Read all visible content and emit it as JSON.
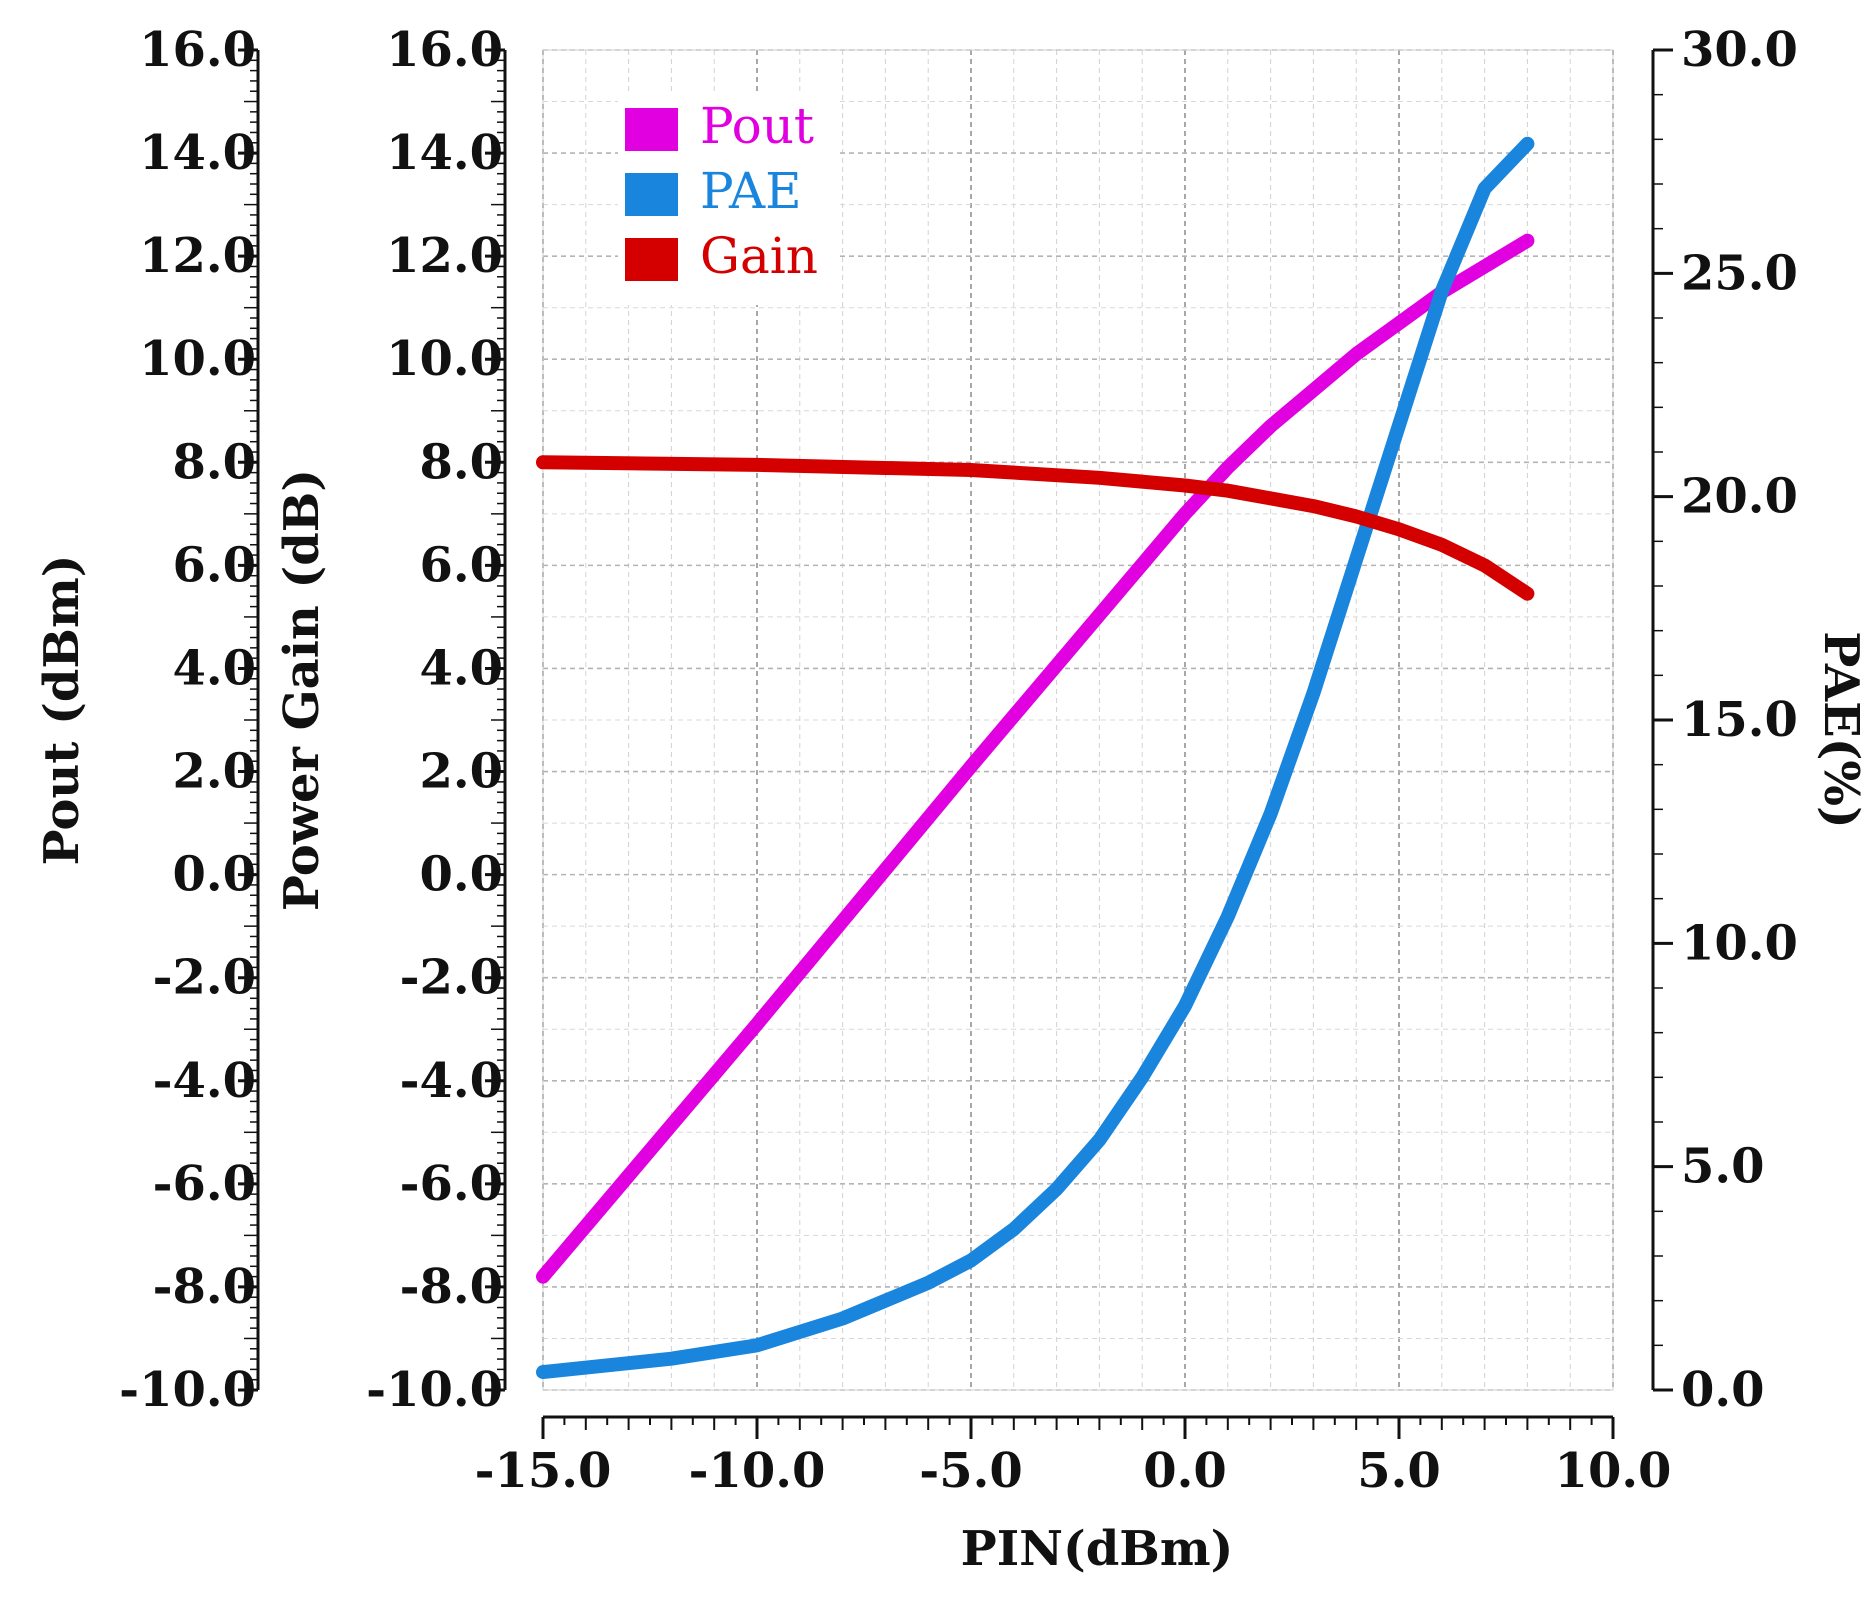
{
  "chart_data": {
    "type": "line",
    "title": "",
    "xlabel": "PIN(dBm)",
    "ylabel_left_outer": "Pout (dBm)",
    "ylabel_left_inner": "Power Gain (dB)",
    "ylabel_right": "PAE(%)",
    "xlim": [
      -15,
      10
    ],
    "ylim_left": [
      -10,
      16
    ],
    "ylim_right": [
      0,
      30
    ],
    "x_ticks": [
      "-15.0",
      "-10.0",
      "-5.0",
      "0.0",
      "5.0",
      "10.0"
    ],
    "y_ticks_left": [
      "-10.0",
      "-8.0",
      "-6.0",
      "-4.0",
      "-2.0",
      "0.0",
      "2.0",
      "4.0",
      "6.0",
      "8.0",
      "10.0",
      "12.0",
      "14.0",
      "16.0"
    ],
    "y_ticks_right": [
      "0.0",
      "5.0",
      "10.0",
      "15.0",
      "20.0",
      "25.0",
      "30.0"
    ],
    "grid": true,
    "legend_position": "top-left",
    "series": [
      {
        "name": "Pout",
        "axis": "left",
        "color": "#e000e0",
        "x": [
          -15,
          -10,
          -5,
          0,
          1,
          2,
          3,
          4,
          5,
          6,
          7,
          8
        ],
        "y": [
          -7.8,
          -2.9,
          2.1,
          7.0,
          7.9,
          8.7,
          9.4,
          10.1,
          10.7,
          11.3,
          11.8,
          12.3
        ]
      },
      {
        "name": "PAE",
        "axis": "right",
        "color": "#1a85dd",
        "x": [
          -15,
          -12,
          -10,
          -8,
          -6,
          -5,
          -4,
          -3,
          -2,
          -1,
          0,
          1,
          2,
          3,
          4,
          5,
          6,
          7,
          8
        ],
        "y": [
          0.4,
          0.7,
          1.0,
          1.6,
          2.4,
          2.9,
          3.6,
          4.5,
          5.6,
          7.0,
          8.6,
          10.6,
          12.9,
          15.6,
          18.6,
          21.6,
          24.6,
          26.9,
          27.9
        ]
      },
      {
        "name": "Gain",
        "axis": "left",
        "color": "#d40000",
        "x": [
          -15,
          -10,
          -5,
          -2,
          0,
          1,
          2,
          3,
          4,
          5,
          6,
          7,
          8
        ],
        "y": [
          8.0,
          7.95,
          7.85,
          7.7,
          7.55,
          7.45,
          7.3,
          7.15,
          6.95,
          6.7,
          6.4,
          6.0,
          5.45
        ]
      }
    ]
  }
}
